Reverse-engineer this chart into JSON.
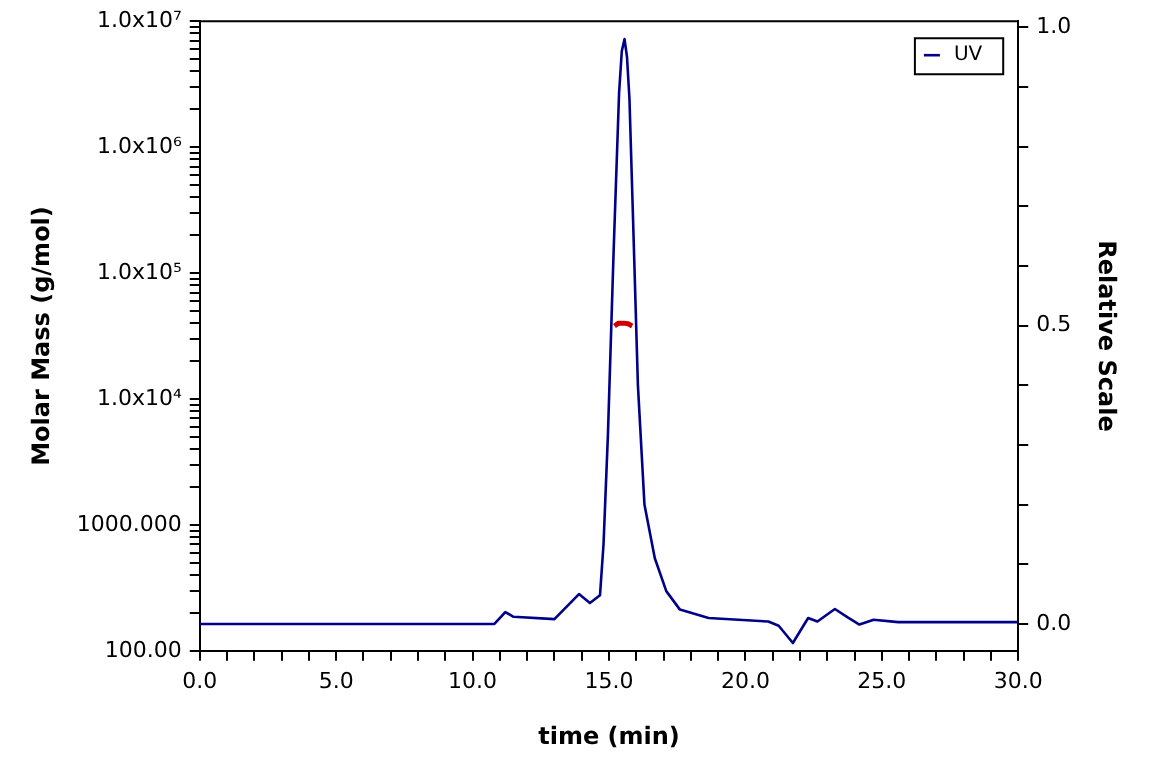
{
  "chart_data": {
    "type": "line",
    "xlabel": "time (min)",
    "ylabel": "Molar Mass (g/mol)",
    "y2label": "Relative Scale",
    "log": "y",
    "legend": "top right",
    "marker": "none",
    "line_style": "solid",
    "grid": false,
    "xlim": [
      0,
      30
    ],
    "xticks": [
      {
        "value": 0,
        "label": "0.0"
      },
      {
        "value": 1,
        "label": null
      },
      {
        "value": 2,
        "label": null
      },
      {
        "value": 3,
        "label": null
      },
      {
        "value": 4,
        "label": null
      },
      {
        "value": 5,
        "label": "5.0"
      },
      {
        "value": 6,
        "label": null
      },
      {
        "value": 7,
        "label": null
      },
      {
        "value": 8,
        "label": null
      },
      {
        "value": 9,
        "label": null
      },
      {
        "value": 10,
        "label": "10.0"
      },
      {
        "value": 11,
        "label": null
      },
      {
        "value": 12,
        "label": null
      },
      {
        "value": 13,
        "label": null
      },
      {
        "value": 14,
        "label": null
      },
      {
        "value": 15,
        "label": "15.0"
      },
      {
        "value": 16,
        "label": null
      },
      {
        "value": 17,
        "label": null
      },
      {
        "value": 18,
        "label": null
      },
      {
        "value": 19,
        "label": null
      },
      {
        "value": 20,
        "label": "20.0"
      },
      {
        "value": 21,
        "label": null
      },
      {
        "value": 22,
        "label": null
      },
      {
        "value": 23,
        "label": null
      },
      {
        "value": 24,
        "label": null
      },
      {
        "value": 25,
        "label": "25.0"
      },
      {
        "value": 26,
        "label": null
      },
      {
        "value": 27,
        "label": null
      },
      {
        "value": 28,
        "label": null
      },
      {
        "value": 29,
        "label": null
      },
      {
        "value": 30,
        "label": "30.0"
      }
    ],
    "ylim": [
      100,
      10000000
    ],
    "yticks": [
      {
        "value": 100,
        "label": "100.00"
      },
      {
        "value": 200,
        "label": null
      },
      {
        "value": 300,
        "label": null
      },
      {
        "value": 400,
        "label": null
      },
      {
        "value": 500,
        "label": null
      },
      {
        "value": 600,
        "label": null
      },
      {
        "value": 700,
        "label": null
      },
      {
        "value": 800,
        "label": null
      },
      {
        "value": 900,
        "label": null
      },
      {
        "value": 1000,
        "label": "1000.000"
      },
      {
        "value": 2000,
        "label": null
      },
      {
        "value": 3000,
        "label": null
      },
      {
        "value": 4000,
        "label": null
      },
      {
        "value": 5000,
        "label": null
      },
      {
        "value": 6000,
        "label": null
      },
      {
        "value": 7000,
        "label": null
      },
      {
        "value": 8000,
        "label": null
      },
      {
        "value": 9000,
        "label": null
      },
      {
        "value": 10000,
        "label": "1.0x10⁴"
      },
      {
        "value": 20000,
        "label": null
      },
      {
        "value": 30000,
        "label": null
      },
      {
        "value": 40000,
        "label": null
      },
      {
        "value": 50000,
        "label": null
      },
      {
        "value": 60000,
        "label": null
      },
      {
        "value": 70000,
        "label": null
      },
      {
        "value": 80000,
        "label": null
      },
      {
        "value": 90000,
        "label": null
      },
      {
        "value": 100000,
        "label": "1.0x10⁵"
      },
      {
        "value": 200000,
        "label": null
      },
      {
        "value": 300000,
        "label": null
      },
      {
        "value": 400000,
        "label": null
      },
      {
        "value": 500000,
        "label": null
      },
      {
        "value": 600000,
        "label": null
      },
      {
        "value": 700000,
        "label": null
      },
      {
        "value": 800000,
        "label": null
      },
      {
        "value": 900000,
        "label": null
      },
      {
        "value": 1000000,
        "label": "1.0x10⁶"
      },
      {
        "value": 2000000,
        "label": null
      },
      {
        "value": 3000000,
        "label": null
      },
      {
        "value": 4000000,
        "label": null
      },
      {
        "value": 5000000,
        "label": null
      },
      {
        "value": 6000000,
        "label": null
      },
      {
        "value": 7000000,
        "label": null
      },
      {
        "value": 8000000,
        "label": null
      },
      {
        "value": 9000000,
        "label": null
      },
      {
        "value": 10000000,
        "label": "1.0x10⁷"
      }
    ],
    "y2lim": [
      -0.045,
      1.01
    ],
    "y2ticks": [
      {
        "value": 0,
        "label": "0.0"
      },
      {
        "value": 0.1,
        "label": null
      },
      {
        "value": 0.2,
        "label": null
      },
      {
        "value": 0.3,
        "label": null
      },
      {
        "value": 0.4,
        "label": null
      },
      {
        "value": 0.5,
        "label": "0.5"
      },
      {
        "value": 0.6,
        "label": null
      },
      {
        "value": 0.7,
        "label": null
      },
      {
        "value": 0.8,
        "label": null
      },
      {
        "value": 0.9,
        "label": null
      },
      {
        "value": 1,
        "label": "1.0"
      }
    ],
    "series": [
      {
        "color": "#cc0000",
        "axis": "y",
        "x": [
          15.2,
          15.35,
          15.55,
          15.7,
          15.85
        ],
        "values": [
          38000,
          40000,
          40000,
          39500,
          38000
        ]
      },
      {
        "name": "UV",
        "color": "#00008b",
        "axis": "y2",
        "x": [
          0,
          10.8,
          11.2,
          11.5,
          13.0,
          13.9,
          14.3,
          14.67,
          14.8,
          14.96,
          15.17,
          15.37,
          15.47,
          15.57,
          15.66,
          15.75,
          15.9,
          16.06,
          16.3,
          16.68,
          17.1,
          17.6,
          18.65,
          20.84,
          21.22,
          21.74,
          22.3,
          22.64,
          23.28,
          23.75,
          24.18,
          24.7,
          25.6,
          30
        ],
        "values": [
          0,
          0,
          0.02,
          0.012,
          0.008,
          0.05,
          0.035,
          0.048,
          0.134,
          0.316,
          0.625,
          0.89,
          0.96,
          0.98,
          0.95,
          0.88,
          0.65,
          0.4,
          0.2,
          0.11,
          0.055,
          0.024,
          0.01,
          0.004,
          -0.003,
          -0.032,
          0.01,
          0.004,
          0.025,
          0.011,
          -0.001,
          0.007,
          0.003,
          0.003
        ]
      }
    ]
  }
}
